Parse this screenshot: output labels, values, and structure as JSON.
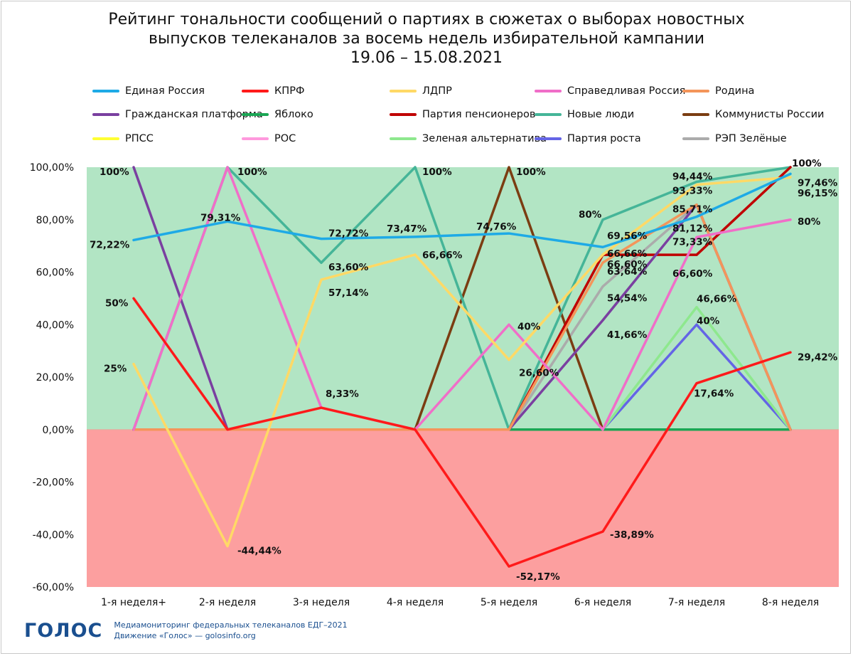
{
  "title_lines": [
    "Рейтинг тональности сообщений о партиях в сюжетах о выборах новостных",
    "выпусков телеканалов за восемь недель избирательной кампании",
    "19.06 – 15.08.2021"
  ],
  "footer": {
    "logo": "ГОЛОС",
    "line1": "Медиамониторинг федеральных телеканалов ЕДГ–2021",
    "line2": "Движение «Голос» — golosinfo.org"
  },
  "colors": {
    "positive_zone": "#b2e5c4",
    "negative_zone": "#fc9f9f"
  },
  "chart_data": {
    "type": "line",
    "title": "Рейтинг тональности сообщений о партиях в сюжетах о выборах новостных выпусков телеканалов за восемь недель избирательной кампании 19.06 – 15.08.2021",
    "categories": [
      "1-я неделя+",
      "2-я неделя",
      "3-я неделя",
      "4-я неделя",
      "5-я неделя",
      "6-я неделя",
      "7-я неделя",
      "8-я неделя"
    ],
    "ylim": [
      -60,
      100
    ],
    "yticks": [
      100,
      80,
      60,
      40,
      20,
      0,
      -20,
      -40,
      -60
    ],
    "ytick_labels": [
      "100,00%",
      "80,00%",
      "60,00%",
      "40,00%",
      "20,00%",
      "0,00%",
      "-20,00%",
      "-40,00%",
      "-60,00%"
    ],
    "legend_position": "top",
    "series": [
      {
        "name": "Единая Россия",
        "color": "#1eaae6",
        "values": [
          72.22,
          79.31,
          72.72,
          73.47,
          74.76,
          69.56,
          81.12,
          97.46
        ]
      },
      {
        "name": "КПРФ",
        "color": "#ff1a1a",
        "values": [
          50,
          0,
          8.33,
          0,
          -52.17,
          -38.89,
          17.64,
          29.42
        ]
      },
      {
        "name": "ЛДПР",
        "color": "#ffd966",
        "values": [
          25,
          -44.44,
          57.14,
          66.66,
          26.6,
          66.66,
          93.33,
          96.15
        ]
      },
      {
        "name": "Справедливая Россия",
        "color": "#f06ec8",
        "values": [
          0,
          100,
          8.33,
          0,
          40,
          0,
          73.33,
          80
        ]
      },
      {
        "name": "Родина",
        "color": "#f4955a",
        "values": [
          0,
          0,
          0,
          0,
          0,
          63.64,
          85.71,
          0
        ]
      },
      {
        "name": "Гражданская платформа",
        "color": "#7a3fa0",
        "values": [
          100,
          0,
          0,
          0,
          0,
          41.66,
          85.71,
          0
        ]
      },
      {
        "name": "Яблоко",
        "color": "#1aa654",
        "values": [
          0,
          0,
          0,
          0,
          0,
          0,
          0,
          0
        ]
      },
      {
        "name": "Партия пенсионеров",
        "color": "#c00000",
        "values": [
          0,
          0,
          0,
          0,
          0,
          66.6,
          66.6,
          100
        ]
      },
      {
        "name": "Новые люди",
        "color": "#45b598",
        "values": [
          0,
          100,
          63.6,
          100,
          0,
          80,
          94.44,
          100
        ]
      },
      {
        "name": "Коммунисты России",
        "color": "#7b3d12",
        "values": [
          0,
          0,
          0,
          0,
          100,
          0,
          0,
          0
        ]
      },
      {
        "name": "РПСС",
        "color": "#ffff33",
        "values": [
          0,
          0,
          0,
          0,
          0,
          0,
          0,
          0
        ]
      },
      {
        "name": "РОС",
        "color": "#ff99dd",
        "values": [
          0,
          0,
          0,
          0,
          0,
          0,
          0,
          0
        ]
      },
      {
        "name": "Зеленая альтернатива",
        "color": "#8ee88e",
        "values": [
          0,
          0,
          0,
          0,
          0,
          0,
          46.66,
          0
        ]
      },
      {
        "name": "Партия роста",
        "color": "#6464e6",
        "values": [
          0,
          0,
          0,
          0,
          0,
          0,
          40,
          0
        ]
      },
      {
        "name": "РЭП Зелёные",
        "color": "#ababab",
        "values": [
          0,
          0,
          0,
          0,
          0,
          54.54,
          85.71,
          0
        ]
      }
    ],
    "annotations": [
      {
        "text": "100%",
        "cat": 0,
        "value": 100
      },
      {
        "text": "72,22%",
        "cat": 0,
        "value": 72.22
      },
      {
        "text": "50%",
        "cat": 0,
        "value": 50
      },
      {
        "text": "25%",
        "cat": 0,
        "value": 25
      },
      {
        "text": "100%",
        "cat": 1,
        "value": 100
      },
      {
        "text": "79,31%",
        "cat": 1,
        "value": 79.31
      },
      {
        "text": "-44,44%",
        "cat": 1,
        "value": -44.44
      },
      {
        "text": "72,72%",
        "cat": 2,
        "value": 72.72
      },
      {
        "text": "63,60%",
        "cat": 2,
        "value": 63.6
      },
      {
        "text": "57,14%",
        "cat": 2,
        "value": 57.14
      },
      {
        "text": "8,33%",
        "cat": 2,
        "value": 8.33
      },
      {
        "text": "100%",
        "cat": 3,
        "value": 100
      },
      {
        "text": "73,47%",
        "cat": 3,
        "value": 73.47
      },
      {
        "text": "66,66%",
        "cat": 3,
        "value": 66.66
      },
      {
        "text": "100%",
        "cat": 4,
        "value": 100
      },
      {
        "text": "74,76%",
        "cat": 4,
        "value": 74.76
      },
      {
        "text": "40%",
        "cat": 4,
        "value": 40
      },
      {
        "text": "26,60%",
        "cat": 4,
        "value": 26.6
      },
      {
        "text": "-52,17%",
        "cat": 4,
        "value": -52.17
      },
      {
        "text": "80%",
        "cat": 5,
        "value": 80
      },
      {
        "text": "69,56%",
        "cat": 5,
        "value": 69.56
      },
      {
        "text": "66,66%",
        "cat": 5,
        "value": 66.66
      },
      {
        "text": "66,60%",
        "cat": 5,
        "value": 66.6
      },
      {
        "text": "63,64%",
        "cat": 5,
        "value": 63.64
      },
      {
        "text": "54,54%",
        "cat": 5,
        "value": 54.54
      },
      {
        "text": "41,66%",
        "cat": 5,
        "value": 41.66
      },
      {
        "text": "-38,89%",
        "cat": 5,
        "value": -38.89
      },
      {
        "text": "94,44%",
        "cat": 6,
        "value": 94.44
      },
      {
        "text": "93,33%",
        "cat": 6,
        "value": 93.33
      },
      {
        "text": "85,71%",
        "cat": 6,
        "value": 85.71
      },
      {
        "text": "81,12%",
        "cat": 6,
        "value": 81.12
      },
      {
        "text": "73,33%",
        "cat": 6,
        "value": 73.33
      },
      {
        "text": "66,60%",
        "cat": 6,
        "value": 66.6
      },
      {
        "text": "46,66%",
        "cat": 6,
        "value": 46.66
      },
      {
        "text": "40%",
        "cat": 6,
        "value": 40
      },
      {
        "text": "17,64%",
        "cat": 6,
        "value": 17.64
      },
      {
        "text": "100%",
        "cat": 7,
        "value": 100
      },
      {
        "text": "97,46%",
        "cat": 7,
        "value": 97.46
      },
      {
        "text": "96,15%",
        "cat": 7,
        "value": 96.15
      },
      {
        "text": "80%",
        "cat": 7,
        "value": 80
      },
      {
        "text": "29,42%",
        "cat": 7,
        "value": 29.42
      }
    ]
  }
}
